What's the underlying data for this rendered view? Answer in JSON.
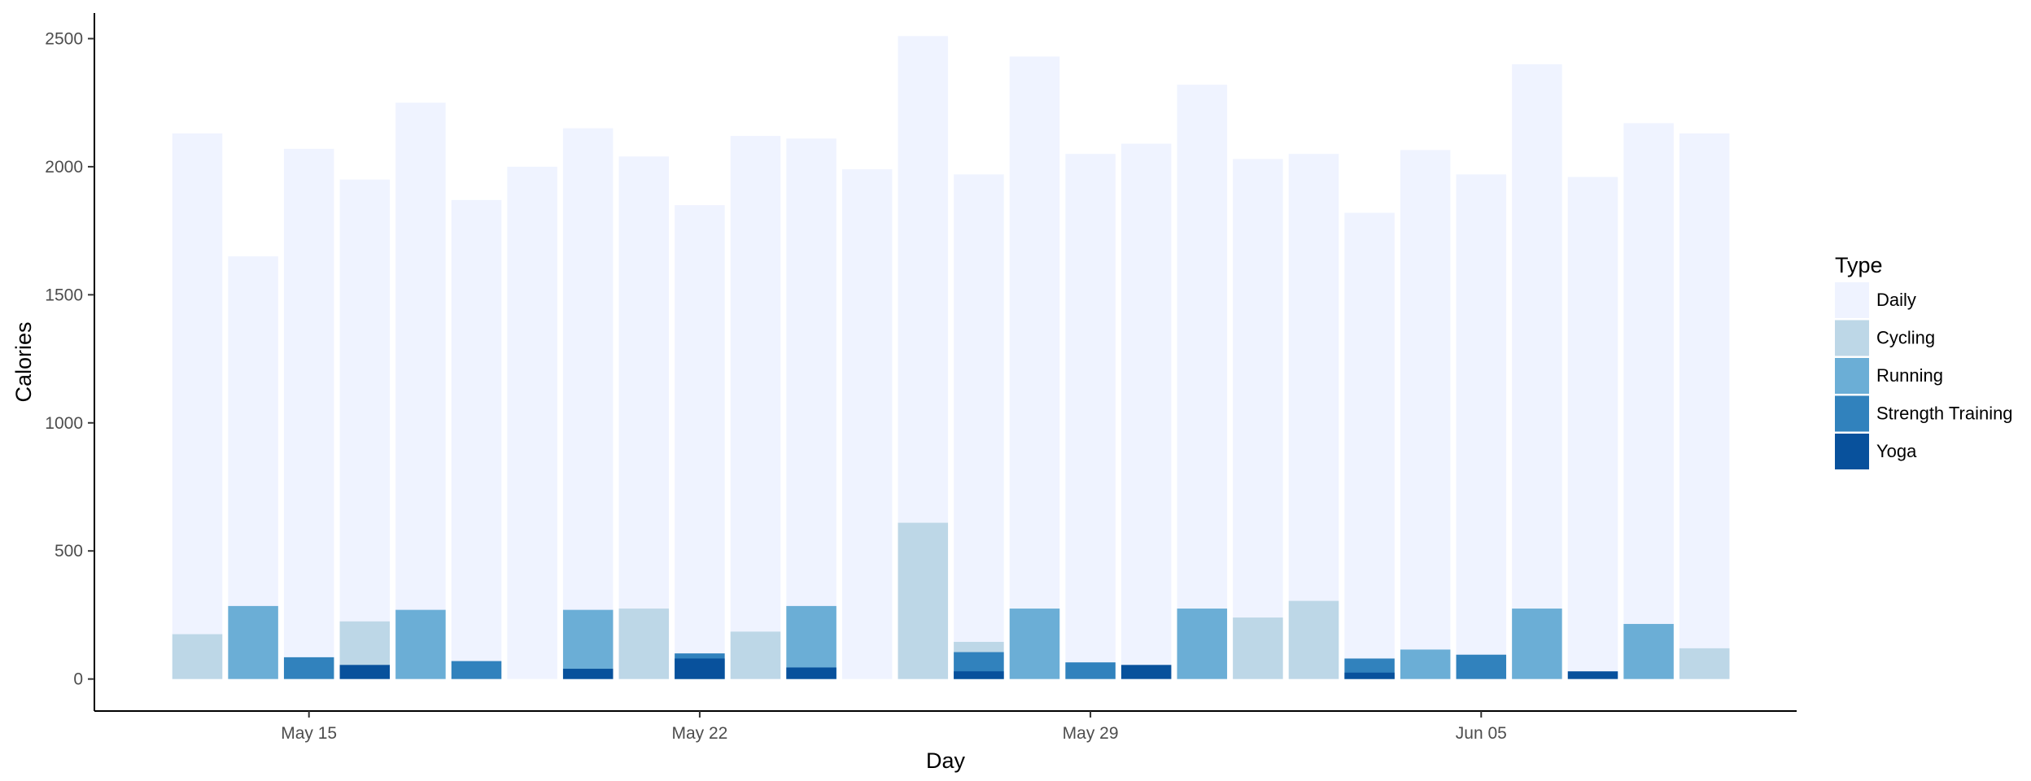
{
  "chart_data": {
    "type": "bar",
    "stacked": false,
    "xlabel": "Day",
    "ylabel": "Calories",
    "ylim": [
      -125,
      2600
    ],
    "y_ticks": [
      0,
      500,
      1000,
      1500,
      2000,
      2500
    ],
    "x_ticks": [
      {
        "label": "May 15",
        "day_index": 2
      },
      {
        "label": "May 22",
        "day_index": 9
      },
      {
        "label": "May 29",
        "day_index": 16
      },
      {
        "label": "Jun 05",
        "day_index": 23
      }
    ],
    "first_day": "May 13",
    "day_count": 28,
    "legend": {
      "title": "Type",
      "position": "right",
      "items": [
        {
          "name": "Daily",
          "color": "#eff3ff"
        },
        {
          "name": "Cycling",
          "color": "#bdd7e7"
        },
        {
          "name": "Running",
          "color": "#6baed6"
        },
        {
          "name": "Strength Training",
          "color": "#3182bd"
        },
        {
          "name": "Yoga",
          "color": "#08519c"
        }
      ]
    },
    "grid": false,
    "series": [
      {
        "name": "Daily",
        "color": "#eff3ff",
        "values": [
          2130,
          1650,
          2070,
          1950,
          2250,
          1870,
          2000,
          2150,
          2040,
          1850,
          2120,
          2110,
          1990,
          2510,
          1970,
          2430,
          2050,
          2090,
          2320,
          2030,
          2050,
          1820,
          2065,
          1970,
          2400,
          1960,
          2170,
          2130
        ]
      },
      {
        "name": "Cycling",
        "color": "#bdd7e7",
        "values": [
          175,
          null,
          null,
          225,
          null,
          null,
          null,
          null,
          275,
          null,
          185,
          null,
          null,
          610,
          145,
          null,
          null,
          null,
          null,
          240,
          305,
          null,
          null,
          null,
          null,
          null,
          null,
          120
        ]
      },
      {
        "name": "Running",
        "color": "#6baed6",
        "values": [
          null,
          285,
          null,
          null,
          270,
          null,
          null,
          270,
          null,
          null,
          null,
          285,
          null,
          null,
          null,
          275,
          null,
          null,
          275,
          null,
          null,
          null,
          115,
          null,
          275,
          null,
          215,
          null
        ]
      },
      {
        "name": "Strength Training",
        "color": "#3182bd",
        "values": [
          null,
          null,
          85,
          null,
          null,
          70,
          null,
          null,
          null,
          100,
          null,
          null,
          null,
          null,
          105,
          null,
          65,
          null,
          null,
          null,
          null,
          80,
          null,
          95,
          null,
          null,
          null,
          null
        ]
      },
      {
        "name": "Yoga",
        "color": "#08519c",
        "values": [
          null,
          null,
          null,
          55,
          null,
          null,
          null,
          40,
          null,
          80,
          null,
          45,
          null,
          null,
          30,
          null,
          null,
          55,
          null,
          null,
          null,
          25,
          null,
          null,
          null,
          30,
          null,
          null
        ]
      }
    ]
  }
}
